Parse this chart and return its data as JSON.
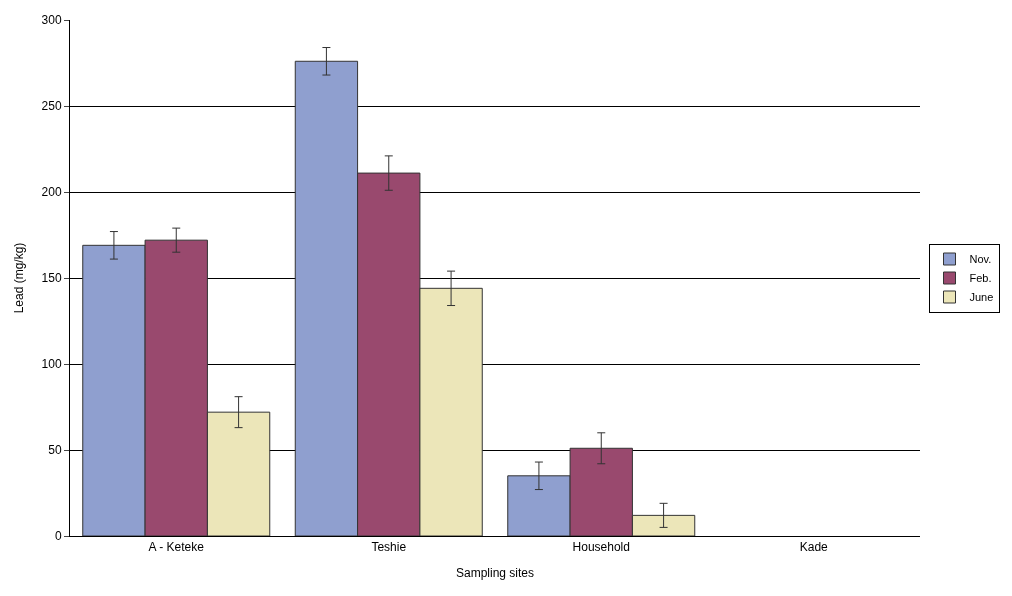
{
  "chart_data": {
    "type": "bar",
    "xlabel": "Sampling sites",
    "ylabel": "Lead (mg/kg)",
    "categories": [
      "A - Keteke",
      "Teshie",
      "Household",
      "Kade"
    ],
    "series": [
      {
        "name": "Nov.",
        "color": "#8f9fcf",
        "values": [
          169,
          276,
          35,
          null
        ],
        "errors": [
          8,
          8,
          8,
          null
        ]
      },
      {
        "name": "Feb.",
        "color": "#99496e",
        "values": [
          172,
          211,
          51,
          null
        ],
        "errors": [
          7,
          10,
          9,
          null
        ]
      },
      {
        "name": "June",
        "color": "#ece6b9",
        "values": [
          72,
          144,
          12,
          null
        ],
        "errors": [
          9,
          10,
          7,
          null
        ]
      }
    ],
    "ylim": [
      0,
      300
    ],
    "yticks": [
      0,
      50,
      100,
      150,
      200,
      250,
      300
    ],
    "grid": "y",
    "legend": "right"
  }
}
